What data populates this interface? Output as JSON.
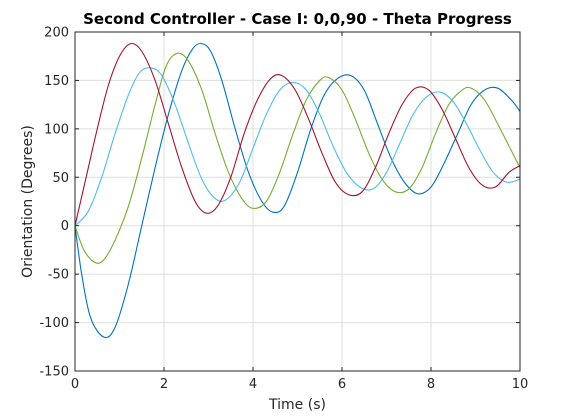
{
  "chart_data": {
    "type": "line",
    "title": "Second Controller - Case I: 0,0,90 - Theta Progress",
    "xlabel": "Time (s)",
    "ylabel": "Orientation (Degrees)",
    "xlim": [
      0,
      10
    ],
    "ylim": [
      -150,
      200
    ],
    "xticks": [
      0,
      2,
      4,
      6,
      8,
      10
    ],
    "yticks": [
      -150,
      -100,
      -50,
      0,
      50,
      100,
      150,
      200
    ],
    "xtick_labels": [
      "0",
      "2",
      "4",
      "6",
      "8",
      "10"
    ],
    "ytick_labels": [
      "-150",
      "-100",
      "-50",
      "0",
      "50",
      "100",
      "150",
      "200"
    ],
    "grid": true,
    "series": [
      {
        "color": "#0072bd",
        "points": [
          [
            0,
            0
          ],
          [
            0.15,
            -50
          ],
          [
            0.35,
            -95
          ],
          [
            0.65,
            -115
          ],
          [
            0.9,
            -105
          ],
          [
            1.2,
            -60
          ],
          [
            1.5,
            0
          ],
          [
            1.8,
            60
          ],
          [
            2.1,
            115
          ],
          [
            2.4,
            160
          ],
          [
            2.65,
            183
          ],
          [
            2.85,
            188
          ],
          [
            3.05,
            180
          ],
          [
            3.3,
            150
          ],
          [
            3.6,
            100
          ],
          [
            3.9,
            55
          ],
          [
            4.2,
            25
          ],
          [
            4.45,
            14
          ],
          [
            4.7,
            20
          ],
          [
            5.0,
            55
          ],
          [
            5.3,
            100
          ],
          [
            5.6,
            135
          ],
          [
            5.9,
            152
          ],
          [
            6.2,
            155
          ],
          [
            6.5,
            140
          ],
          [
            6.8,
            105
          ],
          [
            7.1,
            70
          ],
          [
            7.4,
            45
          ],
          [
            7.7,
            33
          ],
          [
            8.0,
            40
          ],
          [
            8.3,
            65
          ],
          [
            8.6,
            95
          ],
          [
            8.9,
            125
          ],
          [
            9.2,
            140
          ],
          [
            9.5,
            142
          ],
          [
            9.8,
            130
          ],
          [
            10.0,
            118
          ]
        ]
      },
      {
        "color": "#77ac30",
        "points": [
          [
            0,
            0
          ],
          [
            0.2,
            -25
          ],
          [
            0.45,
            -38
          ],
          [
            0.65,
            -35
          ],
          [
            0.9,
            -15
          ],
          [
            1.2,
            20
          ],
          [
            1.5,
            70
          ],
          [
            1.8,
            125
          ],
          [
            2.05,
            165
          ],
          [
            2.3,
            178
          ],
          [
            2.55,
            170
          ],
          [
            2.85,
            140
          ],
          [
            3.15,
            95
          ],
          [
            3.45,
            55
          ],
          [
            3.75,
            28
          ],
          [
            4.0,
            18
          ],
          [
            4.3,
            25
          ],
          [
            4.6,
            55
          ],
          [
            4.9,
            95
          ],
          [
            5.2,
            130
          ],
          [
            5.5,
            150
          ],
          [
            5.7,
            153
          ],
          [
            6.0,
            140
          ],
          [
            6.3,
            110
          ],
          [
            6.6,
            75
          ],
          [
            6.9,
            48
          ],
          [
            7.2,
            35
          ],
          [
            7.5,
            38
          ],
          [
            7.8,
            60
          ],
          [
            8.1,
            95
          ],
          [
            8.4,
            125
          ],
          [
            8.7,
            140
          ],
          [
            8.9,
            142
          ],
          [
            9.2,
            130
          ],
          [
            9.5,
            105
          ],
          [
            9.8,
            78
          ],
          [
            10.0,
            60
          ]
        ]
      },
      {
        "color": "#4dbeee",
        "points": [
          [
            0,
            0
          ],
          [
            0.3,
            15
          ],
          [
            0.6,
            50
          ],
          [
            0.9,
            95
          ],
          [
            1.2,
            135
          ],
          [
            1.45,
            158
          ],
          [
            1.7,
            163
          ],
          [
            1.95,
            155
          ],
          [
            2.25,
            125
          ],
          [
            2.55,
            85
          ],
          [
            2.85,
            48
          ],
          [
            3.15,
            28
          ],
          [
            3.4,
            27
          ],
          [
            3.7,
            45
          ],
          [
            4.0,
            80
          ],
          [
            4.3,
            115
          ],
          [
            4.6,
            140
          ],
          [
            4.9,
            148
          ],
          [
            5.2,
            140
          ],
          [
            5.5,
            115
          ],
          [
            5.8,
            82
          ],
          [
            6.1,
            55
          ],
          [
            6.4,
            40
          ],
          [
            6.7,
            38
          ],
          [
            7.0,
            55
          ],
          [
            7.3,
            85
          ],
          [
            7.6,
            115
          ],
          [
            7.9,
            133
          ],
          [
            8.2,
            138
          ],
          [
            8.5,
            128
          ],
          [
            8.8,
            105
          ],
          [
            9.1,
            78
          ],
          [
            9.4,
            55
          ],
          [
            9.7,
            45
          ],
          [
            10.0,
            48
          ]
        ]
      },
      {
        "color": "#a2142f",
        "points": [
          [
            0,
            0
          ],
          [
            0.25,
            50
          ],
          [
            0.5,
            100
          ],
          [
            0.75,
            145
          ],
          [
            1.0,
            175
          ],
          [
            1.25,
            188
          ],
          [
            1.5,
            180
          ],
          [
            1.8,
            150
          ],
          [
            2.1,
            105
          ],
          [
            2.4,
            60
          ],
          [
            2.7,
            25
          ],
          [
            2.95,
            13
          ],
          [
            3.2,
            20
          ],
          [
            3.5,
            50
          ],
          [
            3.8,
            95
          ],
          [
            4.1,
            130
          ],
          [
            4.4,
            152
          ],
          [
            4.65,
            155
          ],
          [
            4.95,
            140
          ],
          [
            5.25,
            110
          ],
          [
            5.55,
            75
          ],
          [
            5.85,
            45
          ],
          [
            6.15,
            32
          ],
          [
            6.45,
            35
          ],
          [
            6.75,
            60
          ],
          [
            7.05,
            95
          ],
          [
            7.35,
            125
          ],
          [
            7.65,
            142
          ],
          [
            7.95,
            140
          ],
          [
            8.25,
            120
          ],
          [
            8.55,
            90
          ],
          [
            8.85,
            60
          ],
          [
            9.15,
            42
          ],
          [
            9.45,
            40
          ],
          [
            9.75,
            55
          ],
          [
            10.0,
            62
          ]
        ]
      }
    ]
  }
}
